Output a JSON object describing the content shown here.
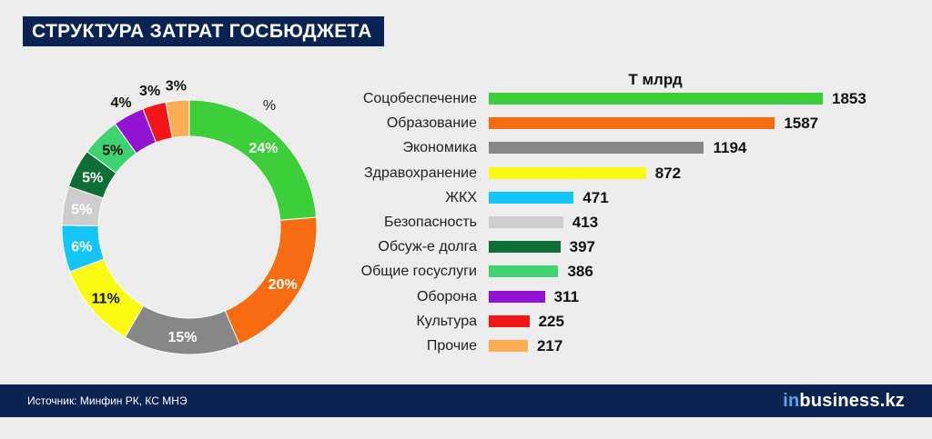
{
  "header": {
    "title": "СТРУКТУРА ЗАТРАТ ГОСБЮДЖЕТА"
  },
  "footer": {
    "source": "Источник: Минфин РК, КС МНЭ",
    "logo_prefix": "in",
    "logo_rest": "business.kz"
  },
  "chart_data": [
    {
      "type": "pie",
      "donut": true,
      "title": "%",
      "slices": [
        {
          "label": "24%",
          "value": 24,
          "color": "#3ccf3a"
        },
        {
          "label": "20%",
          "value": 20,
          "color": "#f76c10"
        },
        {
          "label": "15%",
          "value": 15,
          "color": "#878787"
        },
        {
          "label": "11%",
          "value": 11,
          "color": "#fafa12"
        },
        {
          "label": "6%",
          "value": 6,
          "color": "#13c6f7"
        },
        {
          "label": "5%",
          "value": 5,
          "color": "#cdcdcd"
        },
        {
          "label": "5%",
          "value": 5,
          "color": "#0f6e36"
        },
        {
          "label": "5%",
          "value": 5,
          "color": "#3fd270"
        },
        {
          "label": "4%",
          "value": 4,
          "color": "#9412d4"
        },
        {
          "label": "3%",
          "value": 3,
          "color": "#f41616"
        },
        {
          "label": "3%",
          "value": 3,
          "color": "#fbad53"
        }
      ]
    },
    {
      "type": "bar",
      "orientation": "horizontal",
      "title": "Т млрд",
      "categories": [
        "Соцобеспечение",
        "Образование",
        "Экономика",
        "Здравохранение",
        "ЖКХ",
        "Безопасность",
        "Обсуж-е долга",
        "Общие госуслуги",
        "Оборона",
        "Культура",
        "Прочие"
      ],
      "values": [
        1853,
        1587,
        1194,
        872,
        471,
        413,
        397,
        386,
        311,
        225,
        217
      ],
      "colors": [
        "#3ccf3a",
        "#f76c10",
        "#878787",
        "#fafa12",
        "#13c6f7",
        "#cdcdcd",
        "#0f6e36",
        "#3fd270",
        "#9412d4",
        "#f41616",
        "#fbad53"
      ]
    }
  ]
}
